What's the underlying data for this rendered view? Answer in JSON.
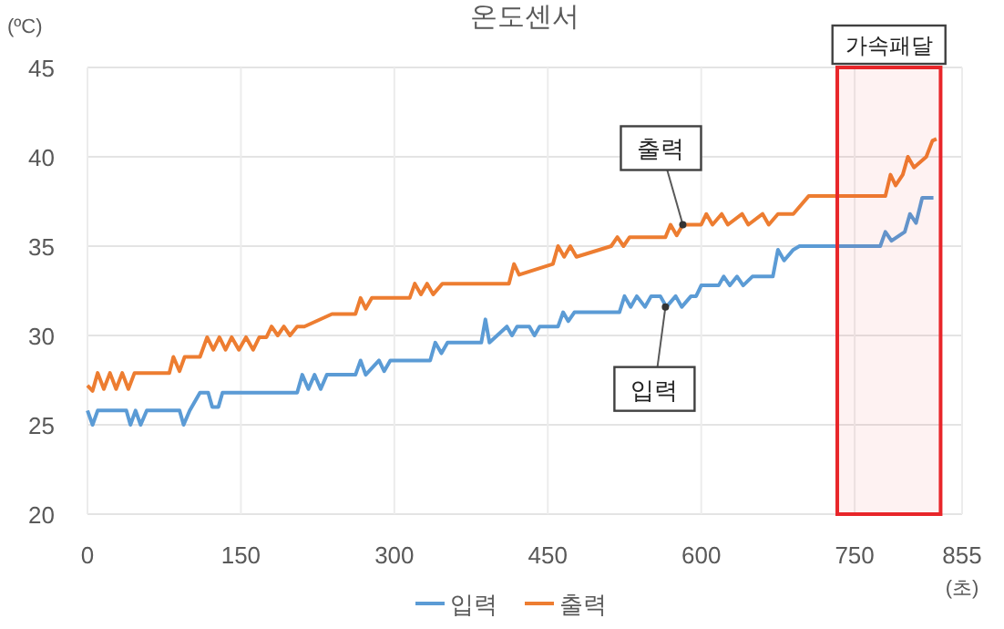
{
  "chart_data": {
    "type": "line",
    "title": "온도센서",
    "ylabel": "(ºC)",
    "xlabel": "(초)",
    "xlim": [
      0,
      855
    ],
    "xticks": [
      0,
      150,
      300,
      450,
      600,
      750,
      855
    ],
    "ylim": [
      20,
      45
    ],
    "yticks": [
      20,
      25,
      30,
      35,
      40,
      45
    ],
    "grid": true,
    "legend": "bottom",
    "marker": "none",
    "line_style": "solid",
    "series": [
      {
        "name": "입력",
        "color": "#5b9bd5",
        "x": [
          0,
          5,
          10,
          38,
          42,
          47,
          52,
          58,
          90,
          94,
          100,
          110,
          118,
          122,
          128,
          132,
          205,
          210,
          216,
          222,
          228,
          234,
          262,
          267,
          272,
          285,
          290,
          296,
          335,
          340,
          346,
          352,
          385,
          389,
          393,
          410,
          415,
          420,
          432,
          437,
          442,
          460,
          465,
          470,
          476,
          520,
          525,
          531,
          537,
          545,
          551,
          560,
          566,
          575,
          581,
          590,
          595,
          600,
          617,
          622,
          628,
          635,
          641,
          650,
          656,
          670,
          675,
          681,
          690,
          696,
          711,
          775,
          780,
          786,
          799,
          804,
          810,
          816,
          827
        ],
        "values": [
          25.8,
          25,
          25.8,
          25.8,
          25,
          25.8,
          25,
          25.8,
          25.8,
          25,
          25.8,
          26.8,
          26.8,
          26,
          26,
          26.8,
          26.8,
          27.8,
          27,
          27.8,
          27,
          27.8,
          27.8,
          28.6,
          27.8,
          28.6,
          28,
          28.6,
          28.6,
          29.6,
          29,
          29.6,
          29.6,
          30.9,
          29.6,
          30.5,
          30,
          30.5,
          30.5,
          30,
          30.5,
          30.5,
          31.3,
          30.8,
          31.3,
          31.3,
          32.2,
          31.6,
          32.2,
          31.6,
          32.2,
          32.2,
          31.6,
          32.2,
          31.6,
          32.2,
          32.2,
          32.8,
          32.8,
          33.3,
          32.8,
          33.3,
          32.8,
          33.3,
          33.3,
          33.3,
          34.8,
          34.2,
          34.8,
          35,
          35,
          35,
          35.8,
          35.3,
          35.8,
          36.8,
          36.3,
          37.7,
          37.7
        ]
      },
      {
        "name": "출력",
        "color": "#ed7d31",
        "x": [
          0,
          5,
          10,
          16,
          22,
          28,
          34,
          40,
          46,
          52,
          80,
          84,
          90,
          95,
          110,
          117,
          123,
          129,
          135,
          141,
          148,
          155,
          162,
          168,
          175,
          180,
          186,
          192,
          198,
          205,
          212,
          239,
          262,
          267,
          272,
          278,
          315,
          320,
          326,
          332,
          338,
          347,
          412,
          417,
          422,
          455,
          460,
          466,
          472,
          478,
          512,
          518,
          524,
          530,
          565,
          570,
          576,
          582,
          600,
          605,
          611,
          620,
          626,
          640,
          646,
          660,
          666,
          675,
          690,
          705,
          780,
          785,
          790,
          797,
          802,
          808,
          820,
          826,
          830
        ],
        "values": [
          27.2,
          26.9,
          27.9,
          27,
          27.9,
          27,
          27.9,
          27,
          27.9,
          27.9,
          27.9,
          28.8,
          28,
          28.8,
          28.8,
          29.9,
          29.2,
          29.9,
          29.2,
          29.9,
          29.2,
          29.9,
          29.2,
          29.9,
          29.9,
          30.5,
          30,
          30.5,
          30,
          30.5,
          30.5,
          31.2,
          31.2,
          32.1,
          31.5,
          32.1,
          32.1,
          32.9,
          32.3,
          32.9,
          32.3,
          32.9,
          32.9,
          34,
          33.4,
          34,
          35,
          34.4,
          35,
          34.4,
          35,
          35.5,
          35,
          35.5,
          35.5,
          36.2,
          35.6,
          36.2,
          36.2,
          36.8,
          36.2,
          36.8,
          36.2,
          36.8,
          36.2,
          36.8,
          36.2,
          36.8,
          36.8,
          37.8,
          37.8,
          39,
          38.4,
          39,
          40,
          39.4,
          40,
          40.9,
          41
        ]
      }
    ],
    "bands": [
      {
        "axis": "x",
        "from": 733,
        "to": 834,
        "label": "가속패달",
        "color": "#e8262a"
      }
    ],
    "annotations": [
      {
        "text": "출력",
        "x": 582,
        "y": 36.2
      },
      {
        "text": "입력",
        "x": 565,
        "y": 31.6
      }
    ]
  }
}
